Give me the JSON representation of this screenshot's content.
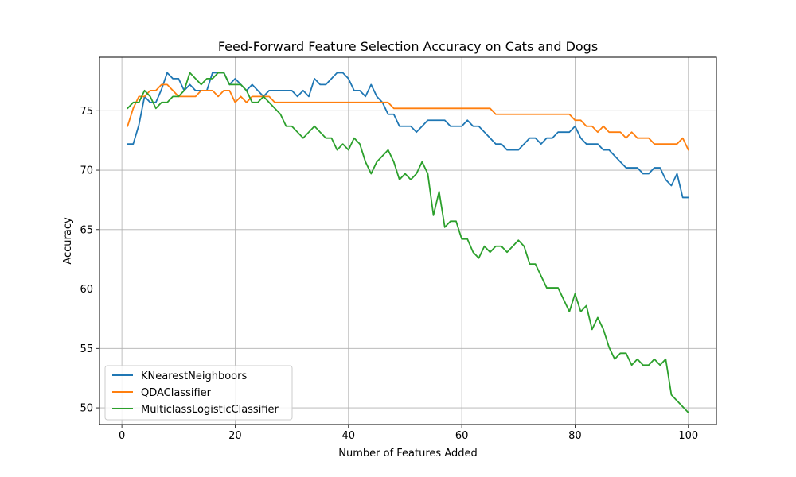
{
  "chart_data": {
    "type": "line",
    "title": "Feed-Forward Feature Selection Accuracy on Cats and Dogs",
    "xlabel": "Number of Features Added",
    "ylabel": "Accuracy",
    "xlim": [
      -3.95,
      104.95
    ],
    "ylim": [
      48.6,
      79.5
    ],
    "xticks": [
      0,
      20,
      40,
      60,
      80,
      100
    ],
    "yticks": [
      50,
      55,
      60,
      65,
      70,
      75
    ],
    "grid": true,
    "legend_position": "lower-left",
    "series": [
      {
        "name": "KNearestNeighboors",
        "color": "#1f77b4",
        "x": [
          1,
          2,
          3,
          4,
          5,
          6,
          7,
          8,
          9,
          10,
          11,
          12,
          13,
          14,
          15,
          16,
          17,
          18,
          19,
          20,
          21,
          22,
          23,
          24,
          25,
          26,
          27,
          28,
          29,
          30,
          31,
          32,
          33,
          34,
          35,
          36,
          37,
          38,
          39,
          40,
          41,
          42,
          43,
          44,
          45,
          46,
          47,
          48,
          49,
          50,
          51,
          52,
          53,
          54,
          55,
          56,
          57,
          58,
          59,
          60,
          61,
          62,
          63,
          64,
          65,
          66,
          67,
          68,
          69,
          70,
          71,
          72,
          73,
          74,
          75,
          76,
          77,
          78,
          79,
          80,
          81,
          82,
          83,
          84,
          85,
          86,
          87,
          88,
          89,
          90,
          91,
          92,
          93,
          94,
          95,
          96,
          97,
          98,
          99,
          100
        ],
        "y": [
          72.2,
          72.2,
          73.8,
          76.2,
          75.7,
          75.7,
          76.8,
          78.2,
          77.7,
          77.7,
          76.7,
          77.2,
          76.7,
          76.7,
          76.7,
          78.2,
          78.2,
          78.2,
          77.2,
          77.7,
          77.2,
          76.7,
          77.2,
          76.7,
          76.2,
          76.7,
          76.7,
          76.7,
          76.7,
          76.7,
          76.2,
          76.7,
          76.2,
          77.7,
          77.2,
          77.2,
          77.7,
          78.2,
          78.2,
          77.7,
          76.7,
          76.7,
          76.2,
          77.2,
          76.2,
          75.7,
          74.7,
          74.7,
          73.7,
          73.7,
          73.7,
          73.2,
          73.7,
          74.2,
          74.2,
          74.2,
          74.2,
          73.7,
          73.7,
          73.7,
          74.2,
          73.7,
          73.7,
          73.2,
          72.7,
          72.2,
          72.2,
          71.7,
          71.7,
          71.7,
          72.2,
          72.7,
          72.7,
          72.2,
          72.7,
          72.7,
          73.2,
          73.2,
          73.2,
          73.7,
          72.7,
          72.2,
          72.2,
          72.2,
          71.7,
          71.7,
          71.2,
          70.7,
          70.2,
          70.2,
          70.2,
          69.7,
          69.7,
          70.2,
          70.2,
          69.2,
          68.7,
          69.7,
          67.7,
          67.7
        ]
      },
      {
        "name": "QDAClassifier",
        "color": "#ff7f0e",
        "x": [
          1,
          2,
          3,
          4,
          5,
          6,
          7,
          8,
          9,
          10,
          11,
          12,
          13,
          14,
          15,
          16,
          17,
          18,
          19,
          20,
          21,
          22,
          23,
          24,
          25,
          26,
          27,
          28,
          29,
          30,
          31,
          32,
          33,
          34,
          35,
          36,
          37,
          38,
          39,
          40,
          41,
          42,
          43,
          44,
          45,
          46,
          47,
          48,
          49,
          50,
          51,
          52,
          53,
          54,
          55,
          56,
          57,
          58,
          59,
          60,
          61,
          62,
          63,
          64,
          65,
          66,
          67,
          68,
          69,
          70,
          71,
          72,
          73,
          74,
          75,
          76,
          77,
          78,
          79,
          80,
          81,
          82,
          83,
          84,
          85,
          86,
          87,
          88,
          89,
          90,
          91,
          92,
          93,
          94,
          95,
          96,
          97,
          98,
          99,
          100
        ],
        "y": [
          73.7,
          75.2,
          76.2,
          76.2,
          76.7,
          76.7,
          77.2,
          77.2,
          76.7,
          76.2,
          76.2,
          76.2,
          76.2,
          76.7,
          76.7,
          76.7,
          76.2,
          76.7,
          76.7,
          75.7,
          76.2,
          75.7,
          76.2,
          76.2,
          76.2,
          76.2,
          75.7,
          75.7,
          75.7,
          75.7,
          75.7,
          75.7,
          75.7,
          75.7,
          75.7,
          75.7,
          75.7,
          75.7,
          75.7,
          75.7,
          75.7,
          75.7,
          75.7,
          75.7,
          75.7,
          75.7,
          75.7,
          75.2,
          75.2,
          75.2,
          75.2,
          75.2,
          75.2,
          75.2,
          75.2,
          75.2,
          75.2,
          75.2,
          75.2,
          75.2,
          75.2,
          75.2,
          75.2,
          75.2,
          75.2,
          74.7,
          74.7,
          74.7,
          74.7,
          74.7,
          74.7,
          74.7,
          74.7,
          74.7,
          74.7,
          74.7,
          74.7,
          74.7,
          74.7,
          74.2,
          74.2,
          73.7,
          73.7,
          73.2,
          73.7,
          73.2,
          73.2,
          73.2,
          72.7,
          73.2,
          72.7,
          72.7,
          72.7,
          72.2,
          72.2,
          72.2,
          72.2,
          72.2,
          72.7,
          71.7
        ]
      },
      {
        "name": "MulticlassLogisticClassifier",
        "color": "#2ca02c",
        "x": [
          1,
          2,
          3,
          4,
          5,
          6,
          7,
          8,
          9,
          10,
          11,
          12,
          13,
          14,
          15,
          16,
          17,
          18,
          19,
          20,
          21,
          22,
          23,
          24,
          25,
          26,
          27,
          28,
          29,
          30,
          31,
          32,
          33,
          34,
          35,
          36,
          37,
          38,
          39,
          40,
          41,
          42,
          43,
          44,
          45,
          46,
          47,
          48,
          49,
          50,
          51,
          52,
          53,
          54,
          55,
          56,
          57,
          58,
          59,
          60,
          61,
          62,
          63,
          64,
          65,
          66,
          67,
          68,
          69,
          70,
          71,
          72,
          73,
          74,
          75,
          76,
          77,
          78,
          79,
          80,
          81,
          82,
          83,
          84,
          85,
          86,
          87,
          88,
          89,
          90,
          91,
          92,
          93,
          94,
          95,
          96,
          97,
          98,
          99,
          100
        ],
        "y": [
          75.2,
          75.7,
          75.7,
          76.7,
          76.2,
          75.2,
          75.7,
          75.7,
          76.2,
          76.2,
          76.7,
          78.2,
          77.7,
          77.2,
          77.7,
          77.7,
          78.2,
          78.2,
          77.2,
          77.2,
          77.2,
          76.7,
          75.7,
          75.7,
          76.2,
          75.7,
          75.2,
          74.7,
          73.7,
          73.7,
          73.2,
          72.7,
          73.2,
          73.7,
          73.2,
          72.7,
          72.7,
          71.7,
          72.2,
          71.7,
          72.7,
          72.2,
          70.7,
          69.7,
          70.7,
          71.2,
          71.7,
          70.7,
          69.2,
          69.7,
          69.2,
          69.7,
          70.7,
          69.7,
          66.2,
          68.2,
          65.2,
          65.7,
          65.7,
          64.2,
          64.2,
          63.1,
          62.6,
          63.6,
          63.1,
          63.6,
          63.6,
          63.1,
          63.6,
          64.1,
          63.6,
          62.1,
          62.1,
          61.1,
          60.1,
          60.1,
          60.1,
          59.1,
          58.1,
          59.6,
          58.1,
          58.6,
          56.6,
          57.6,
          56.6,
          55.1,
          54.1,
          54.6,
          54.6,
          53.6,
          54.1,
          53.6,
          53.6,
          54.1,
          53.6,
          54.1,
          51.1,
          50.6,
          50.1,
          49.6
        ]
      }
    ]
  }
}
